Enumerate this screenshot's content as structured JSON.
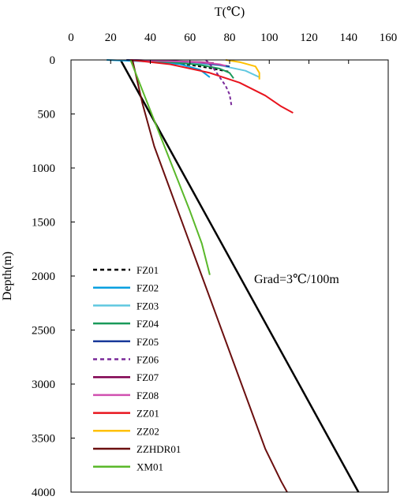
{
  "chart_data": {
    "type": "line",
    "title": "",
    "xlabel": "T(℃)",
    "ylabel": "Depth(m)",
    "xlim": [
      0,
      160
    ],
    "ylim": [
      0,
      4000
    ],
    "y_inverted": true,
    "x_axis_position": "top",
    "x_ticks": [
      "0",
      "20",
      "40",
      "60",
      "80",
      "100",
      "120",
      "140",
      "160"
    ],
    "y_ticks": [
      "0",
      "500",
      "1000",
      "1500",
      "2000",
      "2500",
      "3000",
      "3500",
      "4000"
    ],
    "legend_position": "bottom-left",
    "annotation": "Grad=3℃/100m",
    "reference_line": {
      "x": [
        25,
        145
      ],
      "y": [
        0,
        4000
      ],
      "color": "#000000"
    },
    "series": [
      {
        "name": "FZ01",
        "color": "#000000",
        "dash": true,
        "x": [
          28,
          45,
          60,
          70,
          80
        ],
        "y": [
          0,
          20,
          45,
          75,
          110
        ]
      },
      {
        "name": "FZ02",
        "color": "#0aa0e0",
        "dash": false,
        "x": [
          18,
          40,
          55,
          65,
          70
        ],
        "y": [
          0,
          15,
          40,
          90,
          160
        ]
      },
      {
        "name": "FZ03",
        "color": "#60c8e0",
        "dash": false,
        "x": [
          30,
          55,
          75,
          88,
          95
        ],
        "y": [
          0,
          20,
          50,
          100,
          160
        ]
      },
      {
        "name": "FZ04",
        "color": "#1a9a5a",
        "dash": false,
        "x": [
          30,
          50,
          65,
          75,
          80,
          82
        ],
        "y": [
          0,
          20,
          45,
          80,
          120,
          170
        ]
      },
      {
        "name": "FZ05",
        "color": "#1a3a9a",
        "dash": false,
        "x": [
          28,
          50,
          65,
          75,
          80
        ],
        "y": [
          0,
          10,
          25,
          45,
          60
        ]
      },
      {
        "name": "FZ06",
        "color": "#7a2a9a",
        "dash": true,
        "x": [
          68,
          72,
          75,
          78,
          80,
          81
        ],
        "y": [
          0,
          80,
          160,
          240,
          320,
          430
        ]
      },
      {
        "name": "FZ07",
        "color": "#800050",
        "dash": false,
        "x": [
          30,
          50,
          65,
          72
        ],
        "y": [
          0,
          10,
          20,
          30
        ]
      },
      {
        "name": "FZ08",
        "color": "#d050b0",
        "dash": false,
        "x": [
          30,
          48,
          62,
          70,
          75,
          78
        ],
        "y": [
          0,
          10,
          20,
          30,
          40,
          55
        ]
      },
      {
        "name": "ZZ01",
        "color": "#e8141e",
        "dash": false,
        "x": [
          30,
          50,
          70,
          85,
          98,
          106,
          112
        ],
        "y": [
          0,
          40,
          120,
          210,
          330,
          430,
          490
        ]
      },
      {
        "name": "ZZ02",
        "color": "#ffc000",
        "dash": false,
        "x": [
          78,
          85,
          93,
          95,
          95
        ],
        "y": [
          0,
          20,
          60,
          120,
          180
        ]
      },
      {
        "name": "ZZHDR01",
        "color": "#6b0f0f",
        "dash": false,
        "x": [
          31,
          36,
          42,
          50,
          58,
          66,
          74,
          82,
          90,
          98,
          106,
          109
        ],
        "y": [
          0,
          400,
          800,
          1200,
          1600,
          2000,
          2400,
          2800,
          3200,
          3600,
          3900,
          4000
        ]
      },
      {
        "name": "XM01",
        "color": "#5ab82a",
        "dash": false,
        "x": [
          30,
          36,
          42,
          48,
          54,
          60,
          66,
          70
        ],
        "y": [
          0,
          280,
          560,
          840,
          1120,
          1400,
          1700,
          1990
        ]
      }
    ]
  }
}
